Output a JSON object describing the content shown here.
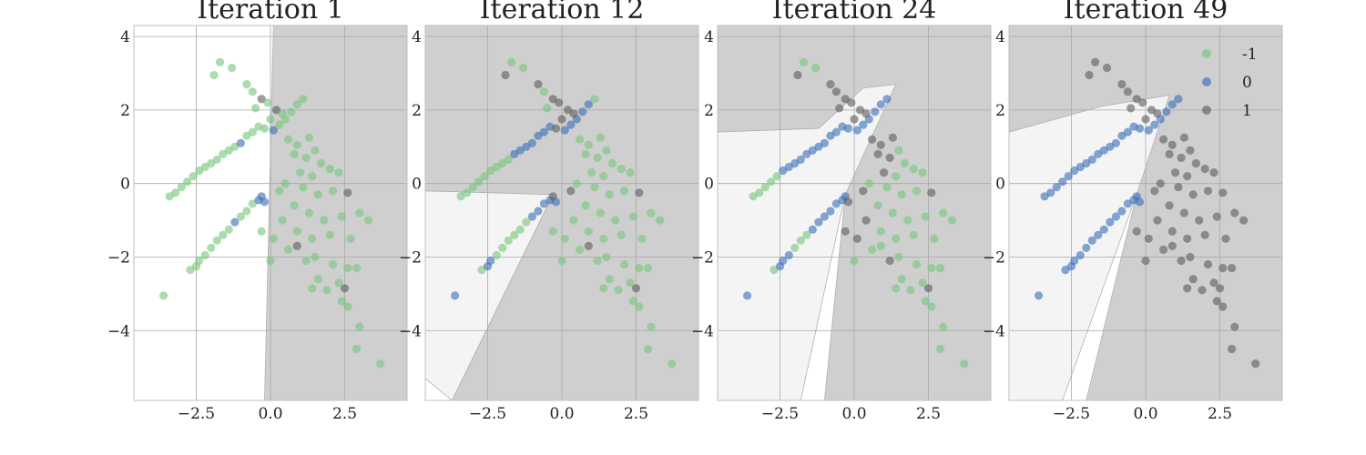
{
  "chart_data": {
    "type": "scatter",
    "xlim": [
      -4.6,
      4.6
    ],
    "ylim": [
      -5.9,
      4.3
    ],
    "xticks": [
      -2.5,
      0.0,
      2.5
    ],
    "xtick_labels": [
      "−2.5",
      "0.0",
      "2.5"
    ],
    "yticks": [
      4,
      2,
      0,
      -2,
      -4
    ],
    "ytick_labels": [
      "4",
      "2",
      "0",
      "−2",
      "−4"
    ],
    "grid": true,
    "legend_position": "top-right",
    "legend": [
      {
        "label": "-1",
        "color": "#77c77a"
      },
      {
        "label": "0",
        "color": "#3b6fba"
      },
      {
        "label": "1",
        "color": "#606060"
      }
    ],
    "region_colors": {
      "-1": "#ffffff",
      "0": "#f4f4f4",
      "1": "#cfcfcf"
    },
    "panels": [
      {
        "title": "Iteration 1",
        "regions": [
          {
            "class": "1",
            "polygon": [
              [
                0.1,
                4.3
              ],
              [
                4.6,
                4.3
              ],
              [
                4.6,
                -5.9
              ],
              [
                -0.2,
                -5.9
              ]
            ]
          }
        ]
      },
      {
        "title": "Iteration 12",
        "regions": [
          {
            "class": "1",
            "polygon": [
              [
                -4.6,
                4.3
              ],
              [
                4.6,
                4.3
              ],
              [
                4.6,
                -5.9
              ],
              [
                -3.7,
                -5.9
              ],
              [
                -0.3,
                -0.3
              ],
              [
                -4.6,
                -0.2
              ]
            ]
          },
          {
            "class": "0",
            "polygon": [
              [
                -4.6,
                -5.3
              ],
              [
                -3.7,
                -5.9
              ],
              [
                -0.3,
                -0.3
              ],
              [
                -4.6,
                -0.2
              ]
            ]
          }
        ]
      },
      {
        "title": "Iteration 24",
        "regions": [
          {
            "class": "1",
            "polygon": [
              [
                -4.6,
                4.3
              ],
              [
                4.6,
                4.3
              ],
              [
                4.6,
                -5.9
              ],
              [
                -1.0,
                -5.9
              ],
              [
                -0.3,
                -0.3
              ],
              [
                -1.2,
                1.5
              ],
              [
                -4.6,
                1.4
              ]
            ]
          },
          {
            "class": "0",
            "polygon": [
              [
                -4.6,
                1.4
              ],
              [
                -1.2,
                1.5
              ],
              [
                0.3,
                2.6
              ],
              [
                1.4,
                2.7
              ],
              [
                -0.3,
                -0.3
              ],
              [
                -1.8,
                -5.9
              ],
              [
                -4.6,
                -5.9
              ]
            ]
          }
        ]
      },
      {
        "title": "Iteration 49",
        "regions": [
          {
            "class": "1",
            "polygon": [
              [
                -4.6,
                4.3
              ],
              [
                4.6,
                4.3
              ],
              [
                4.6,
                -5.9
              ],
              [
                -2.0,
                -5.9
              ],
              [
                -0.3,
                -0.3
              ],
              [
                -1.5,
                1.5
              ],
              [
                -4.6,
                0.5
              ]
            ]
          },
          {
            "class": "0",
            "polygon": [
              [
                -4.6,
                1.4
              ],
              [
                -1.5,
                2.1
              ],
              [
                0.8,
                2.4
              ],
              [
                -0.3,
                -0.3
              ],
              [
                -2.8,
                -5.9
              ],
              [
                -4.6,
                -5.9
              ]
            ]
          }
        ]
      }
    ],
    "points": [
      {
        "x": -3.6,
        "y": -3.05,
        "c": [
          -1,
          0,
          0,
          0
        ]
      },
      {
        "x": -2.7,
        "y": -2.35,
        "c": [
          -1,
          -1,
          -1,
          0
        ]
      },
      {
        "x": -2.5,
        "y": -2.25,
        "c": [
          -1,
          0,
          0,
          0
        ]
      },
      {
        "x": -2.4,
        "y": -2.1,
        "c": [
          -1,
          0,
          0,
          0
        ]
      },
      {
        "x": -2.2,
        "y": -1.95,
        "c": [
          -1,
          -1,
          0,
          0
        ]
      },
      {
        "x": -2.0,
        "y": -1.75,
        "c": [
          -1,
          -1,
          -1,
          0
        ]
      },
      {
        "x": -1.8,
        "y": -1.55,
        "c": [
          -1,
          -1,
          -1,
          0
        ]
      },
      {
        "x": -1.6,
        "y": -1.4,
        "c": [
          -1,
          -1,
          -1,
          0
        ]
      },
      {
        "x": -1.4,
        "y": -1.25,
        "c": [
          -1,
          -1,
          0,
          0
        ]
      },
      {
        "x": -1.2,
        "y": -1.05,
        "c": [
          0,
          -1,
          0,
          0
        ]
      },
      {
        "x": -1.0,
        "y": -0.9,
        "c": [
          -1,
          0,
          0,
          0
        ]
      },
      {
        "x": -0.8,
        "y": -0.75,
        "c": [
          -1,
          0,
          0,
          0
        ]
      },
      {
        "x": -0.6,
        "y": -0.55,
        "c": [
          -1,
          0,
          0,
          0
        ]
      },
      {
        "x": -0.4,
        "y": -0.45,
        "c": [
          0,
          0,
          0,
          0
        ]
      },
      {
        "x": -0.3,
        "y": -0.35,
        "c": [
          0,
          1,
          0,
          0
        ]
      },
      {
        "x": -0.2,
        "y": -0.5,
        "c": [
          0,
          0,
          1,
          0
        ]
      },
      {
        "x": -3.4,
        "y": -0.35,
        "c": [
          -1,
          -1,
          -1,
          0
        ]
      },
      {
        "x": -3.2,
        "y": -0.25,
        "c": [
          -1,
          -1,
          -1,
          0
        ]
      },
      {
        "x": -3.0,
        "y": -0.1,
        "c": [
          -1,
          -1,
          -1,
          0
        ]
      },
      {
        "x": -2.8,
        "y": 0.05,
        "c": [
          -1,
          -1,
          -1,
          0
        ]
      },
      {
        "x": -2.6,
        "y": 0.2,
        "c": [
          -1,
          -1,
          -1,
          0
        ]
      },
      {
        "x": -2.4,
        "y": 0.35,
        "c": [
          -1,
          -1,
          0,
          0
        ]
      },
      {
        "x": -2.2,
        "y": 0.45,
        "c": [
          -1,
          -1,
          0,
          0
        ]
      },
      {
        "x": -2.0,
        "y": 0.55,
        "c": [
          -1,
          -1,
          0,
          0
        ]
      },
      {
        "x": -1.8,
        "y": 0.65,
        "c": [
          -1,
          -1,
          0,
          0
        ]
      },
      {
        "x": -1.6,
        "y": 0.8,
        "c": [
          -1,
          0,
          0,
          0
        ]
      },
      {
        "x": -1.4,
        "y": 0.9,
        "c": [
          -1,
          0,
          0,
          0
        ]
      },
      {
        "x": -1.2,
        "y": 1.0,
        "c": [
          -1,
          0,
          0,
          0
        ]
      },
      {
        "x": -1.0,
        "y": 1.1,
        "c": [
          0,
          0,
          0,
          0
        ]
      },
      {
        "x": -0.8,
        "y": 1.3,
        "c": [
          -1,
          0,
          0,
          0
        ]
      },
      {
        "x": -0.6,
        "y": 1.4,
        "c": [
          -1,
          0,
          0,
          0
        ]
      },
      {
        "x": -0.4,
        "y": 1.55,
        "c": [
          -1,
          0,
          0,
          0
        ]
      },
      {
        "x": -0.2,
        "y": 1.5,
        "c": [
          -1,
          1,
          0,
          0
        ]
      },
      {
        "x": 0.1,
        "y": 1.45,
        "c": [
          0,
          0,
          0,
          0
        ]
      },
      {
        "x": 0.3,
        "y": 1.6,
        "c": [
          -1,
          0,
          0,
          0
        ]
      },
      {
        "x": 0.5,
        "y": 1.75,
        "c": [
          -1,
          0,
          0,
          0
        ]
      },
      {
        "x": 0.7,
        "y": 1.95,
        "c": [
          -1,
          0,
          0,
          0
        ]
      },
      {
        "x": 0.9,
        "y": 2.15,
        "c": [
          -1,
          0,
          0,
          0
        ]
      },
      {
        "x": 1.1,
        "y": 2.3,
        "c": [
          -1,
          -1,
          0,
          0
        ]
      },
      {
        "x": -1.7,
        "y": 3.3,
        "c": [
          -1,
          -1,
          -1,
          1
        ]
      },
      {
        "x": -1.3,
        "y": 3.15,
        "c": [
          -1,
          -1,
          -1,
          1
        ]
      },
      {
        "x": -1.9,
        "y": 2.95,
        "c": [
          -1,
          1,
          1,
          1
        ]
      },
      {
        "x": -0.8,
        "y": 2.7,
        "c": [
          -1,
          1,
          1,
          1
        ]
      },
      {
        "x": -0.6,
        "y": 2.5,
        "c": [
          -1,
          -1,
          1,
          1
        ]
      },
      {
        "x": -0.3,
        "y": 2.3,
        "c": [
          1,
          1,
          1,
          1
        ]
      },
      {
        "x": -0.1,
        "y": 2.2,
        "c": [
          -1,
          1,
          1,
          1
        ]
      },
      {
        "x": -0.5,
        "y": 2.05,
        "c": [
          -1,
          -1,
          1,
          1
        ]
      },
      {
        "x": 0.2,
        "y": 2.0,
        "c": [
          1,
          1,
          1,
          1
        ]
      },
      {
        "x": 0.4,
        "y": 1.9,
        "c": [
          -1,
          1,
          1,
          1
        ]
      },
      {
        "x": 0.0,
        "y": 1.75,
        "c": [
          -1,
          1,
          1,
          1
        ]
      },
      {
        "x": 0.6,
        "y": 1.2,
        "c": [
          -1,
          -1,
          1,
          1
        ]
      },
      {
        "x": 0.9,
        "y": 1.05,
        "c": [
          -1,
          -1,
          1,
          1
        ]
      },
      {
        "x": 1.3,
        "y": 1.25,
        "c": [
          -1,
          -1,
          1,
          1
        ]
      },
      {
        "x": 0.8,
        "y": 0.8,
        "c": [
          -1,
          -1,
          1,
          1
        ]
      },
      {
        "x": 1.2,
        "y": 0.7,
        "c": [
          -1,
          -1,
          1,
          1
        ]
      },
      {
        "x": 1.5,
        "y": 0.9,
        "c": [
          -1,
          -1,
          -1,
          1
        ]
      },
      {
        "x": 1.7,
        "y": 0.55,
        "c": [
          -1,
          -1,
          -1,
          1
        ]
      },
      {
        "x": 1.0,
        "y": 0.3,
        "c": [
          -1,
          -1,
          1,
          1
        ]
      },
      {
        "x": 1.4,
        "y": 0.2,
        "c": [
          -1,
          -1,
          -1,
          1
        ]
      },
      {
        "x": 2.0,
        "y": 0.4,
        "c": [
          -1,
          -1,
          -1,
          1
        ]
      },
      {
        "x": 2.3,
        "y": 0.3,
        "c": [
          -1,
          -1,
          -1,
          1
        ]
      },
      {
        "x": 0.5,
        "y": 0.0,
        "c": [
          -1,
          -1,
          -1,
          1
        ]
      },
      {
        "x": 0.3,
        "y": -0.2,
        "c": [
          -1,
          1,
          1,
          1
        ]
      },
      {
        "x": 1.1,
        "y": -0.1,
        "c": [
          -1,
          -1,
          -1,
          1
        ]
      },
      {
        "x": 1.6,
        "y": -0.3,
        "c": [
          -1,
          -1,
          -1,
          1
        ]
      },
      {
        "x": 2.1,
        "y": -0.2,
        "c": [
          -1,
          -1,
          -1,
          1
        ]
      },
      {
        "x": 2.6,
        "y": -0.25,
        "c": [
          1,
          1,
          1,
          1
        ]
      },
      {
        "x": 0.8,
        "y": -0.6,
        "c": [
          -1,
          -1,
          -1,
          1
        ]
      },
      {
        "x": 1.3,
        "y": -0.8,
        "c": [
          -1,
          -1,
          -1,
          1
        ]
      },
      {
        "x": 0.4,
        "y": -1.0,
        "c": [
          -1,
          -1,
          1,
          1
        ]
      },
      {
        "x": 1.8,
        "y": -1.0,
        "c": [
          -1,
          -1,
          -1,
          1
        ]
      },
      {
        "x": 2.4,
        "y": -0.9,
        "c": [
          -1,
          -1,
          -1,
          1
        ]
      },
      {
        "x": 3.0,
        "y": -0.8,
        "c": [
          -1,
          -1,
          -1,
          1
        ]
      },
      {
        "x": 3.3,
        "y": -1.0,
        "c": [
          -1,
          -1,
          -1,
          1
        ]
      },
      {
        "x": 0.9,
        "y": -1.3,
        "c": [
          -1,
          -1,
          -1,
          1
        ]
      },
      {
        "x": 1.4,
        "y": -1.5,
        "c": [
          -1,
          -1,
          -1,
          1
        ]
      },
      {
        "x": 2.0,
        "y": -1.4,
        "c": [
          -1,
          -1,
          -1,
          1
        ]
      },
      {
        "x": 2.7,
        "y": -1.5,
        "c": [
          -1,
          -1,
          -1,
          1
        ]
      },
      {
        "x": 0.1,
        "y": -1.5,
        "c": [
          -1,
          -1,
          1,
          1
        ]
      },
      {
        "x": 0.6,
        "y": -1.8,
        "c": [
          -1,
          -1,
          -1,
          1
        ]
      },
      {
        "x": 0.9,
        "y": -1.7,
        "c": [
          1,
          1,
          -1,
          1
        ]
      },
      {
        "x": 1.5,
        "y": -2.0,
        "c": [
          -1,
          -1,
          -1,
          1
        ]
      },
      {
        "x": 1.2,
        "y": -2.1,
        "c": [
          -1,
          -1,
          1,
          1
        ]
      },
      {
        "x": 2.1,
        "y": -2.2,
        "c": [
          -1,
          -1,
          -1,
          1
        ]
      },
      {
        "x": 2.6,
        "y": -2.3,
        "c": [
          -1,
          -1,
          -1,
          1
        ]
      },
      {
        "x": 2.9,
        "y": -2.3,
        "c": [
          -1,
          -1,
          -1,
          1
        ]
      },
      {
        "x": 1.6,
        "y": -2.6,
        "c": [
          -1,
          -1,
          -1,
          1
        ]
      },
      {
        "x": 2.3,
        "y": -2.7,
        "c": [
          -1,
          -1,
          -1,
          1
        ]
      },
      {
        "x": 1.9,
        "y": -2.9,
        "c": [
          -1,
          -1,
          -1,
          1
        ]
      },
      {
        "x": 2.5,
        "y": -2.85,
        "c": [
          1,
          1,
          1,
          1
        ]
      },
      {
        "x": 1.4,
        "y": -2.85,
        "c": [
          -1,
          -1,
          -1,
          1
        ]
      },
      {
        "x": 2.4,
        "y": -3.2,
        "c": [
          -1,
          -1,
          -1,
          1
        ]
      },
      {
        "x": 2.6,
        "y": -3.35,
        "c": [
          -1,
          -1,
          -1,
          1
        ]
      },
      {
        "x": 3.0,
        "y": -3.9,
        "c": [
          -1,
          -1,
          -1,
          1
        ]
      },
      {
        "x": 2.9,
        "y": -4.5,
        "c": [
          -1,
          -1,
          -1,
          1
        ]
      },
      {
        "x": 3.7,
        "y": -4.9,
        "c": [
          -1,
          -1,
          -1,
          1
        ]
      },
      {
        "x": -0.3,
        "y": -1.3,
        "c": [
          -1,
          -1,
          1,
          1
        ]
      },
      {
        "x": 0.0,
        "y": -2.1,
        "c": [
          -1,
          -1,
          -1,
          1
        ]
      }
    ]
  }
}
